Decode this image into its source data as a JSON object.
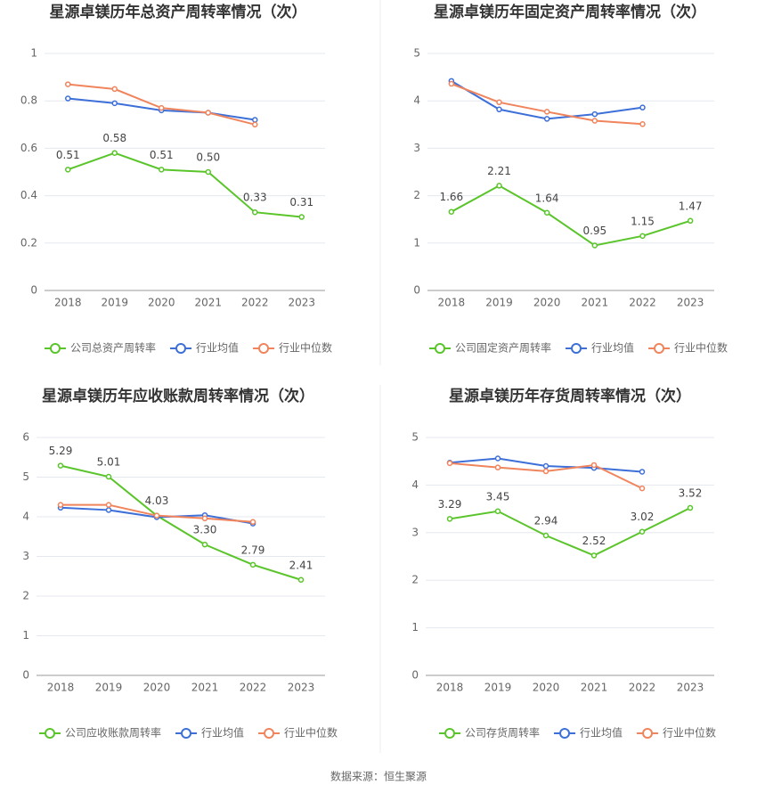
{
  "chart_data": [
    {
      "type": "line",
      "title": "星源卓镁历年总资产周转率情况（次）",
      "categories": [
        "2018",
        "2019",
        "2020",
        "2021",
        "2022",
        "2023"
      ],
      "series": [
        {
          "name": "公司总资产周转率",
          "color": "#5ac52a",
          "values": [
            0.51,
            0.58,
            0.51,
            0.5,
            0.33,
            0.31
          ],
          "value_labels": [
            "0.51",
            "0.58",
            "0.51",
            "0.50",
            "0.33",
            "0.31"
          ]
        },
        {
          "name": "行业均值",
          "color": "#3d6fd9",
          "values": [
            0.81,
            0.79,
            0.76,
            0.75,
            0.72,
            null
          ]
        },
        {
          "name": "行业中位数",
          "color": "#f0845c",
          "values": [
            0.87,
            0.85,
            0.77,
            0.75,
            0.7,
            null
          ]
        }
      ],
      "ylim": [
        0,
        1
      ],
      "yticks": [
        0,
        0.2,
        0.4,
        0.6,
        0.8,
        1
      ],
      "grid": true,
      "legend": "bottom"
    },
    {
      "type": "line",
      "title": "星源卓镁历年固定资产周转率情况（次）",
      "categories": [
        "2018",
        "2019",
        "2020",
        "2021",
        "2022",
        "2023"
      ],
      "series": [
        {
          "name": "公司固定资产周转率",
          "color": "#5ac52a",
          "values": [
            1.66,
            2.21,
            1.64,
            0.95,
            1.15,
            1.47
          ],
          "value_labels": [
            "1.66",
            "2.21",
            "1.64",
            "0.95",
            "1.15",
            "1.47"
          ]
        },
        {
          "name": "行业均值",
          "color": "#3d6fd9",
          "values": [
            4.42,
            3.82,
            3.62,
            3.72,
            3.86,
            null
          ]
        },
        {
          "name": "行业中位数",
          "color": "#f0845c",
          "values": [
            4.36,
            3.97,
            3.77,
            3.58,
            3.51,
            null
          ]
        }
      ],
      "ylim": [
        0,
        5
      ],
      "yticks": [
        0,
        1,
        2,
        3,
        4,
        5
      ],
      "grid": true,
      "legend": "bottom"
    },
    {
      "type": "line",
      "title": "星源卓镁历年应收账款周转率情况（次）",
      "categories": [
        "2018",
        "2019",
        "2020",
        "2021",
        "2022",
        "2023"
      ],
      "series": [
        {
          "name": "公司应收账款周转率",
          "color": "#5ac52a",
          "values": [
            5.29,
            5.01,
            4.03,
            3.3,
            2.79,
            2.41
          ],
          "value_labels": [
            "5.29",
            "5.01",
            "4.03",
            "3.30",
            "2.79",
            "2.41"
          ]
        },
        {
          "name": "行业均值",
          "color": "#3d6fd9",
          "values": [
            4.23,
            4.17,
            3.99,
            4.04,
            3.83,
            null
          ]
        },
        {
          "name": "行业中位数",
          "color": "#f0845c",
          "values": [
            4.3,
            4.3,
            4.03,
            3.96,
            3.87,
            null
          ]
        }
      ],
      "ylim": [
        0,
        6
      ],
      "yticks": [
        0,
        1,
        2,
        3,
        4,
        5,
        6
      ],
      "grid": true,
      "legend": "bottom"
    },
    {
      "type": "line",
      "title": "星源卓镁历年存货周转率情况（次）",
      "categories": [
        "2018",
        "2019",
        "2020",
        "2021",
        "2022",
        "2023"
      ],
      "series": [
        {
          "name": "公司存货周转率",
          "color": "#5ac52a",
          "values": [
            3.29,
            3.45,
            2.94,
            2.52,
            3.02,
            3.52
          ],
          "value_labels": [
            "3.29",
            "3.45",
            "2.94",
            "2.52",
            "3.02",
            "3.52"
          ]
        },
        {
          "name": "行业均值",
          "color": "#3d6fd9",
          "values": [
            4.47,
            4.56,
            4.4,
            4.36,
            4.28,
            null
          ]
        },
        {
          "name": "行业中位数",
          "color": "#f0845c",
          "values": [
            4.46,
            4.37,
            4.29,
            4.42,
            3.93,
            null
          ]
        }
      ],
      "ylim": [
        0,
        5
      ],
      "yticks": [
        0,
        1,
        2,
        3,
        4,
        5
      ],
      "grid": true,
      "legend": "bottom"
    }
  ],
  "source": "数据来源：恒生聚源"
}
